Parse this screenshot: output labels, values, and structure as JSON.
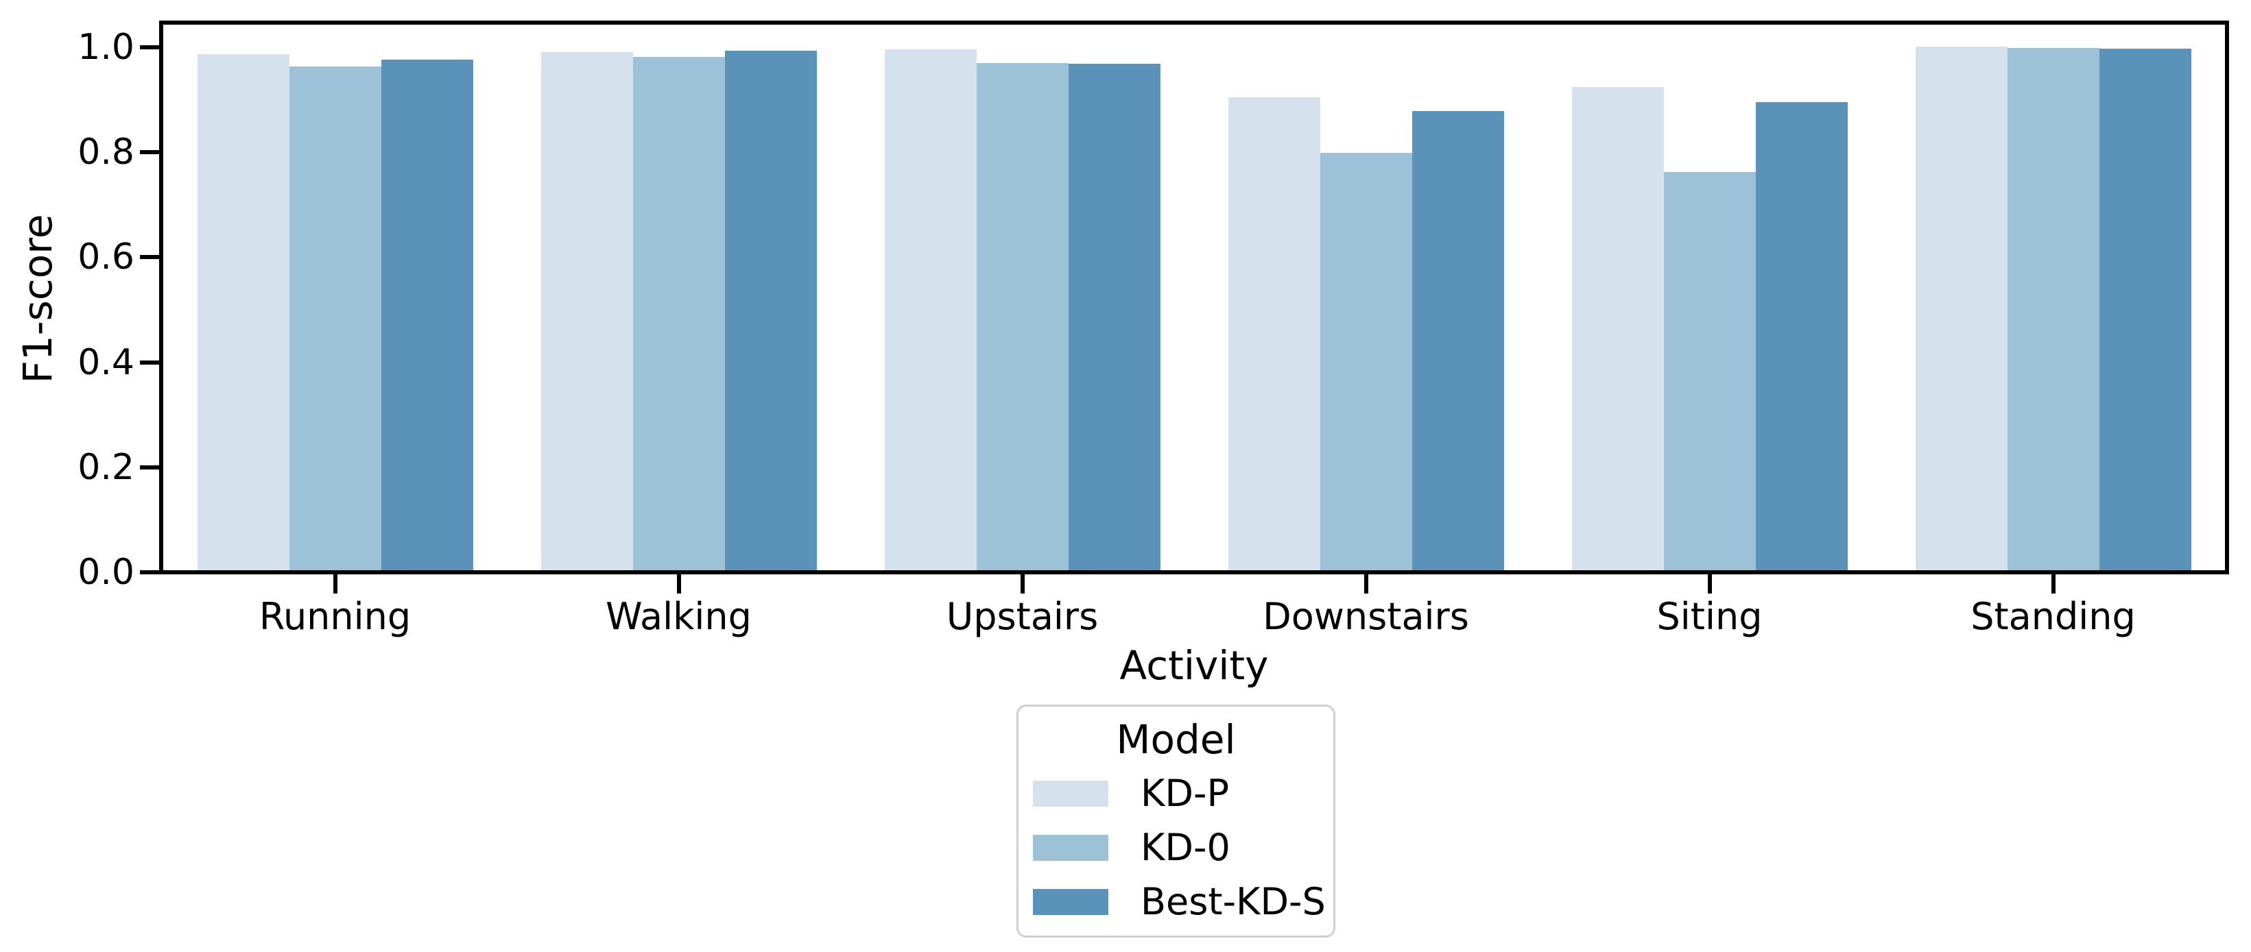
{
  "chart_data": {
    "type": "bar",
    "title": "",
    "xlabel": "Activity",
    "ylabel": "F1-score",
    "categories": [
      "Running",
      "Walking",
      "Upstairs",
      "Downstairs",
      "Siting",
      "Standing"
    ],
    "series": [
      {
        "name": "KD-P",
        "color": "#d5e2ee",
        "values": [
          0.983,
          0.987,
          0.992,
          0.901,
          0.92,
          0.998
        ]
      },
      {
        "name": "KD-0",
        "color": "#9dc2d8",
        "values": [
          0.96,
          0.978,
          0.966,
          0.795,
          0.758,
          0.995
        ]
      },
      {
        "name": "Best-KD-S",
        "color": "#5b92ba",
        "values": [
          0.973,
          0.989,
          0.965,
          0.875,
          0.891,
          0.994
        ]
      }
    ],
    "ylim": [
      0.0,
      1.04
    ],
    "yticks": [
      "0.0",
      "0.2",
      "0.4",
      "0.6",
      "0.8",
      "1.0"
    ],
    "grid": false,
    "legend": {
      "title": "Model",
      "position": "below-center"
    },
    "colors": {
      "spine": "#000000",
      "text": "#000000",
      "legend_border": "#d0d0d0",
      "background": "#ffffff"
    }
  }
}
